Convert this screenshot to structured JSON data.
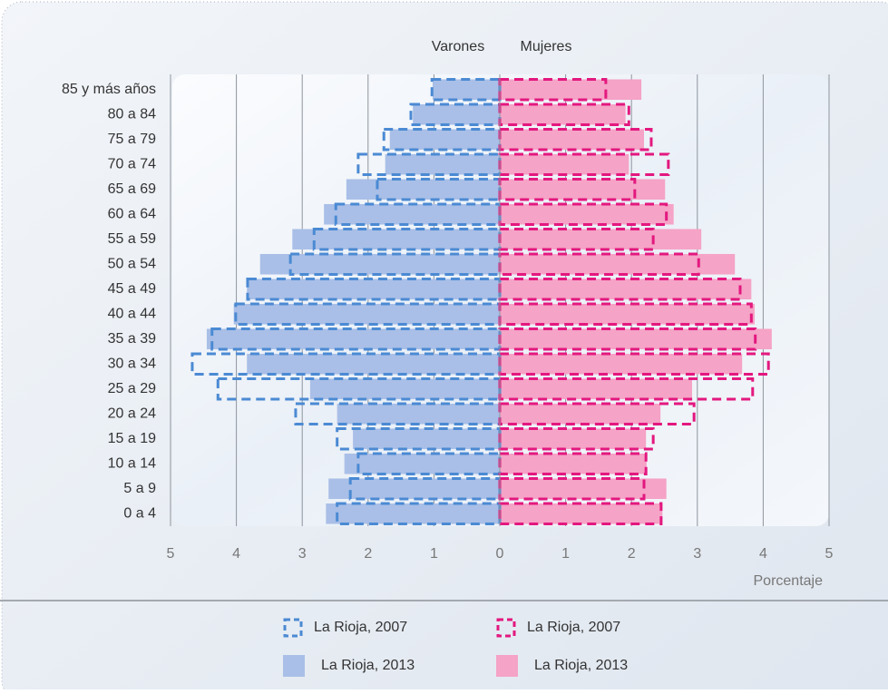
{
  "chart_data": {
    "type": "pyramid",
    "left_header": "Varones",
    "right_header": "Mujeres",
    "x_label": "Porcentaje",
    "categories": [
      "85 y más años",
      "80 a 84",
      "75 a 79",
      "70 a 74",
      "65 a 69",
      "60 a 64",
      "55 a 59",
      "50 a 54",
      "45 a 49",
      "40 a 44",
      "35 a 39",
      "30 a 34",
      "25 a 29",
      "20 a 24",
      "15 a 19",
      "10 a 14",
      "5 a 9",
      "0 a 4"
    ],
    "xlim": [
      -5,
      5
    ],
    "xticks": [
      {
        "value": -5,
        "label": "5"
      },
      {
        "value": -4,
        "label": "4"
      },
      {
        "value": -3,
        "label": "3"
      },
      {
        "value": -2,
        "label": "2"
      },
      {
        "value": -1,
        "label": "1"
      },
      0,
      1,
      2,
      3,
      4,
      5
    ],
    "grid": true,
    "series": [
      {
        "name": "La Rioja, 2013",
        "side": "left",
        "style": "solid",
        "color": "#a9bfe7",
        "values": [
          1.02,
          1.32,
          1.67,
          1.74,
          2.33,
          2.67,
          3.15,
          3.64,
          3.84,
          4.04,
          4.45,
          3.84,
          2.88,
          2.47,
          2.23,
          2.36,
          2.6,
          2.64
        ]
      },
      {
        "name": "La Rioja, 2013",
        "side": "right",
        "style": "solid",
        "color": "#f5a3c6",
        "values": [
          2.15,
          1.91,
          2.19,
          1.96,
          2.51,
          2.64,
          3.06,
          3.57,
          3.82,
          3.87,
          4.13,
          3.68,
          2.92,
          2.44,
          2.22,
          2.23,
          2.53,
          2.47
        ]
      },
      {
        "name": "La Rioja, 2007",
        "side": "left",
        "style": "dashed",
        "color": "#4b8ad3",
        "values": [
          1.03,
          1.35,
          1.76,
          2.15,
          1.86,
          2.49,
          2.82,
          3.18,
          3.83,
          4.01,
          4.37,
          4.67,
          4.28,
          3.1,
          2.47,
          2.15,
          2.27,
          2.47
        ]
      },
      {
        "name": "La Rioja, 2007",
        "side": "right",
        "style": "dashed",
        "color": "#e3187f",
        "values": [
          1.61,
          1.96,
          2.3,
          2.56,
          2.05,
          2.53,
          2.33,
          3.02,
          3.65,
          3.82,
          3.88,
          4.08,
          3.84,
          2.95,
          2.33,
          2.22,
          2.19,
          2.45
        ]
      }
    ]
  }
}
